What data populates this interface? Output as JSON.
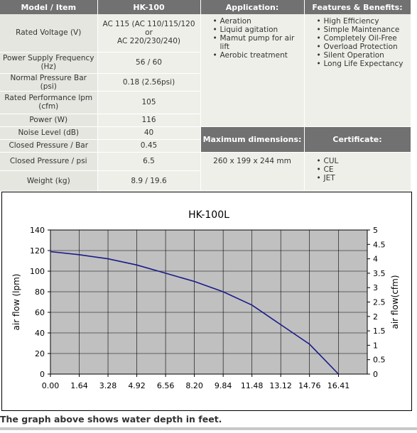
{
  "spec": {
    "headers": {
      "item": "Model / Item",
      "model": "HK-100",
      "application": "Application:",
      "features": "Features & Benefits:"
    },
    "rows": [
      {
        "label": "Rated Voltage (V)",
        "value": "AC 115 (AC 110/115/120\nor\nAC 220/230/240)"
      },
      {
        "label": "Power Supply Frequency\n(Hz)",
        "value": "56 / 60"
      },
      {
        "label": "Normal Pressure Bar (psi)",
        "value": "0.18 (2.56psi)"
      },
      {
        "label": "Rated Performance lpm\n(cfm)",
        "value": "105"
      },
      {
        "label": "Power (W)",
        "value": "116"
      },
      {
        "label": "Noise Level (dB)",
        "value": "40"
      },
      {
        "label": "Closed Pressure / Bar",
        "value": "0.45"
      },
      {
        "label": "Closed Pressure / psi",
        "value": "6.5"
      },
      {
        "label": "Weight (kg)",
        "value": "8.9 / 19.6"
      }
    ],
    "application": [
      "Aeration",
      "Liquid agitation",
      "Mamut pump for air lift",
      "Aerobic treatment"
    ],
    "features": [
      "High Efficiency",
      "Simple Maintenance",
      "Completely Oil-Free",
      "Overload Protection",
      "Silent Operation",
      "Long Life Expectancy"
    ],
    "max_dimensions": {
      "label": "Maximum dimensions:",
      "value": "260 x 199 x 244 mm"
    },
    "certificate": {
      "label": "Certificate:",
      "items": [
        "CUL",
        "CE",
        "JET"
      ]
    }
  },
  "chart_data": {
    "type": "line",
    "title": "HK-100L",
    "ylabel": "air flow (lpm)",
    "y2label": "air flow(cfm)",
    "x_ticks": [
      "0.00",
      "1.64",
      "3.28",
      "4.92",
      "6.56",
      "8.20",
      "9.84",
      "11.48",
      "13.12",
      "14.76",
      "16.41"
    ],
    "y_ticks": [
      "0",
      "20",
      "40",
      "60",
      "80",
      "100",
      "120",
      "140"
    ],
    "y2_ticks": [
      "0",
      "0.5",
      "1",
      "1.5",
      "2",
      "2.5",
      "3",
      "3.5",
      "4",
      "4.5",
      "5"
    ],
    "xlim": [
      0,
      18.05
    ],
    "ylim": [
      0,
      140
    ],
    "y2lim": [
      0,
      5
    ],
    "grid": true,
    "series_color": "#1a1a8c",
    "plot_bg": "#c0c0c0",
    "series": [
      {
        "x": [
          0,
          1.64,
          3.28,
          4.92,
          6.56,
          8.2,
          9.84,
          11.48,
          13.12,
          14.76,
          16.41
        ],
        "y": [
          119,
          116,
          112,
          106,
          98,
          90,
          80,
          67,
          48,
          29,
          0
        ]
      }
    ]
  },
  "caption": "The graph above shows water depth in feet."
}
